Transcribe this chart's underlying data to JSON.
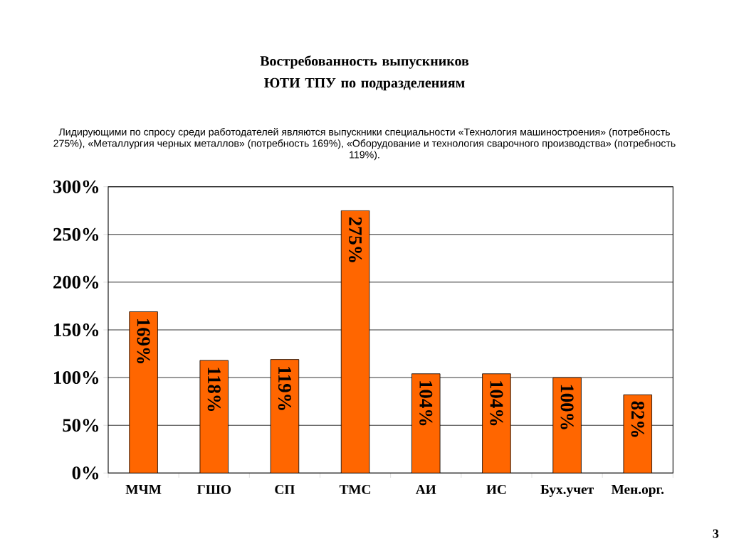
{
  "chart_data": {
    "type": "bar",
    "title": "Востребованность выпускников ЮТИ ТПУ по подразделениям",
    "subtitle": "Лидирующими по спросу среди работодателей являются выпускники специальности «Технология машиностроения» (потребность 275%), «Металлургия черных металлов» (потребность 169%), «Оборудование и технология сварочного производства» (потребность 119%).",
    "categories": [
      "МЧМ",
      "ГШО",
      "СП",
      "ТМС",
      "АИ",
      "ИС",
      "Бух.учет",
      "Мен.орг."
    ],
    "values": [
      169,
      118,
      119,
      275,
      104,
      104,
      100,
      82
    ],
    "value_labels": [
      "169%",
      "118%",
      "119%",
      "275%",
      "104%",
      "104%",
      "100%",
      "82%"
    ],
    "color": "#ff6600",
    "ylim": [
      0,
      300
    ],
    "yticks": [
      {
        "value": 0,
        "label": "0%"
      },
      {
        "value": 50,
        "label": "50%"
      },
      {
        "value": 100,
        "label": "100%"
      },
      {
        "value": 150,
        "label": "150%"
      },
      {
        "value": 200,
        "label": "200%"
      },
      {
        "value": 250,
        "label": "250%"
      },
      {
        "value": 300,
        "label": "300%"
      }
    ],
    "grid": "y",
    "annotations": [
      "3"
    ]
  }
}
